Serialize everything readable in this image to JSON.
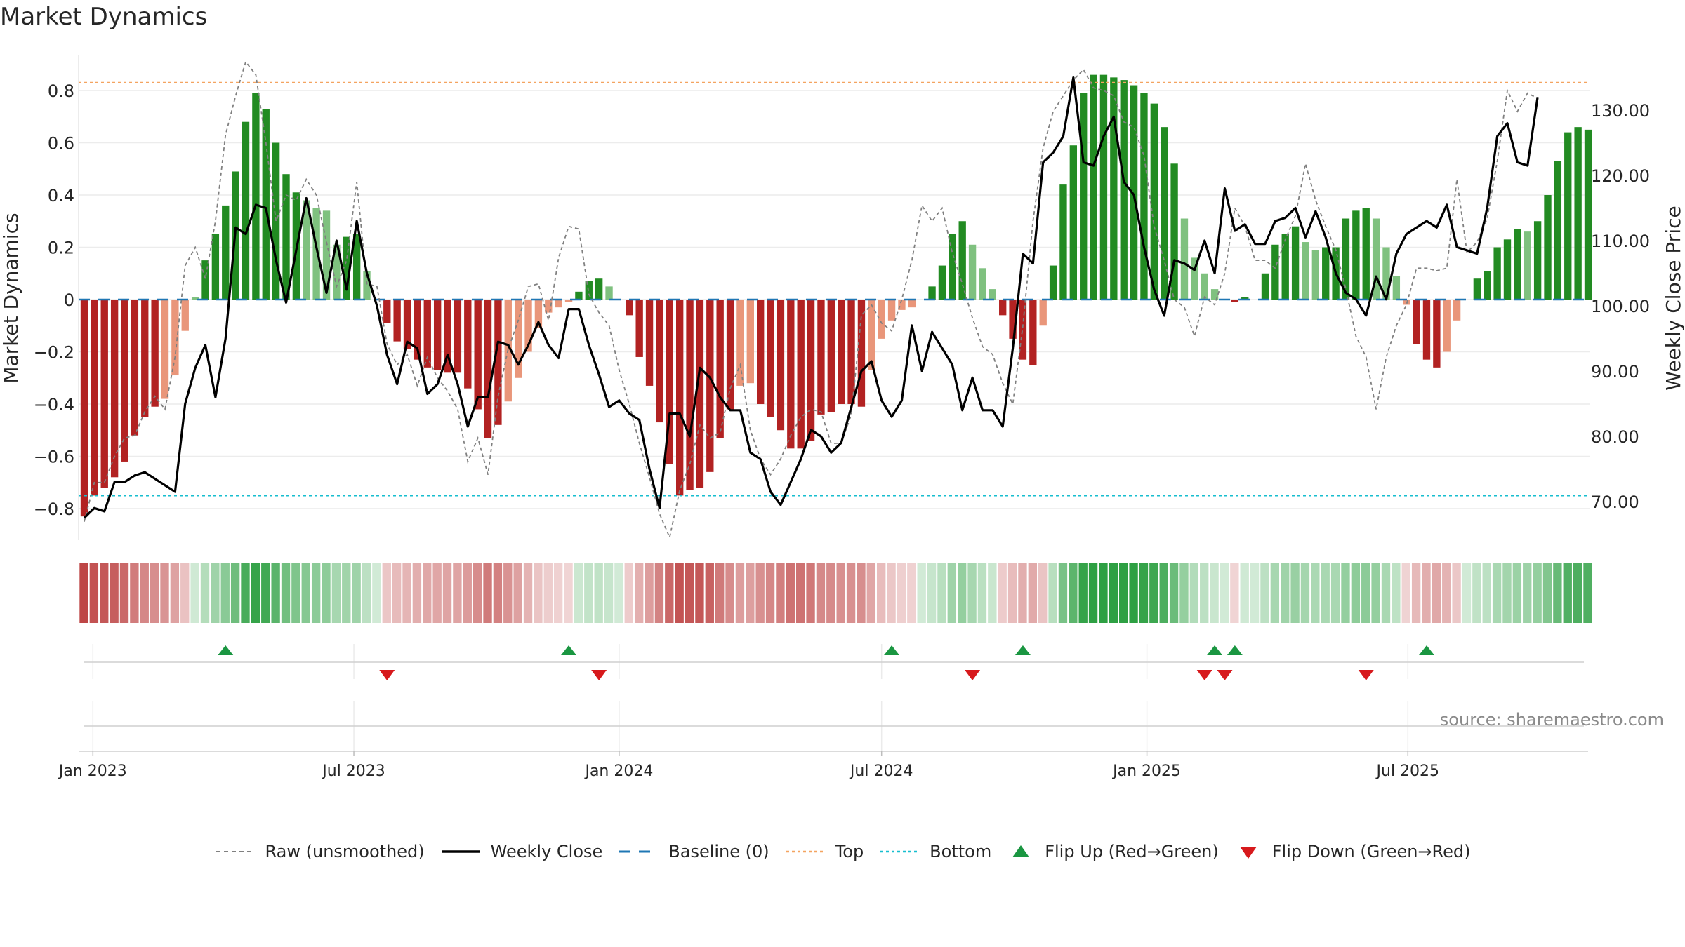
{
  "page": {
    "title": "Market Dynamics",
    "source": "source: sharemaestro.com"
  },
  "colors": {
    "strong_green": "#228b22",
    "light_green": "#7fc17f",
    "strong_red": "#b22222",
    "light_red": "#e9967a",
    "raw_line": "#808080",
    "close_line": "#000000",
    "baseline": "#1f77b4",
    "top": "#f4a460",
    "bottom": "#17becf",
    "flip_up": "#1a9641",
    "flip_down": "#d7191c"
  },
  "chart_data": {
    "type": "bar",
    "title": "Market Dynamics",
    "ylabel": "Market Dynamics",
    "y2label": "Weekly Close Price",
    "ylim": [
      -0.9,
      0.93
    ],
    "y2lim": [
      62,
      134
    ],
    "yticks": [
      "−0.8",
      "−0.6",
      "−0.4",
      "−0.2",
      "0",
      "0.2",
      "0.4",
      "0.6",
      "0.8"
    ],
    "yticks_values": [
      -0.8,
      -0.6,
      -0.4,
      -0.2,
      0,
      0.2,
      0.4,
      0.6,
      0.8
    ],
    "y2ticks": [
      "70.00",
      "80.00",
      "90.00",
      "100.00",
      "110.00",
      "120.00",
      "130.00"
    ],
    "y2ticks_values": [
      70,
      80,
      90,
      100,
      110,
      120,
      130
    ],
    "xticks": [
      "Jan 2023",
      "Jul 2023",
      "Jan 2024",
      "Jul 2024",
      "Jan 2025",
      "Jul 2025"
    ],
    "xticks_dates": [
      "2023-01-01",
      "2023-07-01",
      "2024-01-01",
      "2024-07-01",
      "2025-01-01",
      "2025-07-01"
    ],
    "start_date": "2022-12-26",
    "step_days": 7,
    "grid": true,
    "legend_position": "bottom-center",
    "top_level": 0.83,
    "bottom_level": -0.75,
    "baseline_level": 0,
    "series": [
      {
        "name": "Market Dynamics",
        "values": [
          -0.83,
          -0.75,
          -0.72,
          -0.68,
          -0.62,
          -0.52,
          -0.45,
          -0.41,
          -0.38,
          -0.29,
          -0.12,
          0.01,
          0.15,
          0.25,
          0.36,
          0.49,
          0.68,
          0.79,
          0.73,
          0.6,
          0.48,
          0.41,
          0.38,
          0.35,
          0.34,
          0.21,
          0.24,
          0.25,
          0.11,
          0.0,
          -0.09,
          -0.16,
          -0.19,
          -0.23,
          -0.26,
          -0.27,
          -0.28,
          -0.28,
          -0.34,
          -0.42,
          -0.53,
          -0.48,
          -0.39,
          -0.3,
          -0.2,
          -0.11,
          -0.05,
          -0.03,
          -0.01,
          0.03,
          0.07,
          0.08,
          0.05,
          0.0,
          -0.06,
          -0.22,
          -0.33,
          -0.47,
          -0.63,
          -0.75,
          -0.73,
          -0.72,
          -0.66,
          -0.53,
          -0.42,
          -0.33,
          -0.32,
          -0.4,
          -0.45,
          -0.5,
          -0.57,
          -0.57,
          -0.54,
          -0.44,
          -0.43,
          -0.4,
          -0.4,
          -0.41,
          -0.27,
          -0.15,
          -0.08,
          -0.04,
          -0.03,
          0.0,
          0.05,
          0.13,
          0.25,
          0.3,
          0.21,
          0.12,
          0.04,
          -0.06,
          -0.15,
          -0.23,
          -0.25,
          -0.1,
          0.13,
          0.44,
          0.59,
          0.79,
          0.86,
          0.86,
          0.85,
          0.84,
          0.82,
          0.79,
          0.75,
          0.66,
          0.52,
          0.31,
          0.16,
          0.1,
          0.04,
          0.0,
          -0.01,
          0.01,
          0.0,
          0.1,
          0.21,
          0.25,
          0.28,
          0.22,
          0.19,
          0.2,
          0.2,
          0.31,
          0.34,
          0.35,
          0.31,
          0.2,
          0.09,
          -0.02,
          -0.17,
          -0.23,
          -0.26,
          -0.2,
          -0.08,
          0.0,
          0.08,
          0.11,
          0.2,
          0.23,
          0.27,
          0.26,
          0.3,
          0.4,
          0.53,
          0.64,
          0.66,
          0.65
        ]
      },
      {
        "name": "Weekly Close",
        "values": [
          67.5,
          69.0,
          68.5,
          73.0,
          73.0,
          74.0,
          74.5,
          73.5,
          72.5,
          71.5,
          85.0,
          90.5,
          94.0,
          86.0,
          95.0,
          112.0,
          111.0,
          115.5,
          115.0,
          107.0,
          100.5,
          108.5,
          116.5,
          109.0,
          102.0,
          110.0,
          102.5,
          113.0,
          105.0,
          100.0,
          92.5,
          88.0,
          94.5,
          93.5,
          86.5,
          88.0,
          92.5,
          88.0,
          81.5,
          86.0,
          86.0,
          94.5,
          94.0,
          91.0,
          94.0,
          97.5,
          94.0,
          92.0,
          99.5,
          99.5,
          94.0,
          89.5,
          84.5,
          85.5,
          83.5,
          82.5,
          75.0,
          69.0,
          83.5,
          83.5,
          80.0,
          90.5,
          89.0,
          86.0,
          84.0,
          84.0,
          77.5,
          76.5,
          71.5,
          69.5,
          73.0,
          76.5,
          81.0,
          80.0,
          77.5,
          79.0,
          84.5,
          90.0,
          91.5,
          85.5,
          83.0,
          85.5,
          97.0,
          90.0,
          96.0,
          93.5,
          91.0,
          84.0,
          89.0,
          84.0,
          84.0,
          81.5,
          93.5,
          108.0,
          106.5,
          122.0,
          123.5,
          126.0,
          135.0,
          122.0,
          121.5,
          126.0,
          129.0,
          119.0,
          117.0,
          109.0,
          102.5,
          98.5,
          107.0,
          106.5,
          105.5,
          110.0,
          105.0,
          118.0,
          111.5,
          112.5,
          109.5,
          109.5,
          113.0,
          113.5,
          115.0,
          110.5,
          114.5,
          110.5,
          105.0,
          102.0,
          101.0,
          98.5,
          104.5,
          101.0,
          108.0,
          111.0,
          112.0,
          113.0,
          112.0,
          115.5,
          109.0,
          108.5,
          108.0,
          115.0,
          126.0,
          128.0,
          122.0,
          121.5,
          132.0
        ]
      },
      {
        "name": "Raw (unsmoothed)",
        "values": [
          -0.85,
          -0.7,
          -0.7,
          -0.6,
          -0.53,
          -0.52,
          -0.43,
          -0.37,
          -0.42,
          -0.22,
          0.13,
          0.2,
          0.08,
          0.3,
          0.63,
          0.78,
          0.91,
          0.86,
          0.6,
          0.3,
          0.4,
          0.38,
          0.46,
          0.4,
          0.22,
          0.05,
          0.15,
          0.45,
          0.06,
          0.05,
          -0.17,
          -0.25,
          -0.21,
          -0.33,
          -0.22,
          -0.3,
          -0.35,
          -0.42,
          -0.62,
          -0.53,
          -0.67,
          -0.37,
          -0.19,
          -0.08,
          0.05,
          0.06,
          -0.08,
          0.16,
          0.28,
          0.27,
          0.02,
          -0.05,
          -0.1,
          -0.27,
          -0.4,
          -0.55,
          -0.68,
          -0.82,
          -0.91,
          -0.73,
          -0.63,
          -0.48,
          -0.53,
          -0.51,
          -0.34,
          -0.25,
          -0.5,
          -0.61,
          -0.67,
          -0.61,
          -0.52,
          -0.45,
          -0.42,
          -0.43,
          -0.55,
          -0.55,
          -0.44,
          -0.06,
          -0.02,
          -0.09,
          -0.12,
          0.0,
          0.15,
          0.36,
          0.3,
          0.35,
          0.18,
          0.06,
          -0.07,
          -0.18,
          -0.21,
          -0.32,
          -0.4,
          -0.1,
          0.3,
          0.58,
          0.72,
          0.78,
          0.84,
          0.88,
          0.81,
          0.8,
          0.78,
          0.68,
          0.66,
          0.55,
          0.28,
          0.15,
          0.0,
          -0.03,
          -0.14,
          0.01,
          -0.02,
          0.1,
          0.35,
          0.28,
          0.15,
          0.15,
          0.12,
          0.23,
          0.32,
          0.52,
          0.38,
          0.28,
          0.19,
          0.04,
          -0.14,
          -0.22,
          -0.42,
          -0.22,
          -0.1,
          -0.02,
          0.12,
          0.12,
          0.11,
          0.12,
          0.46,
          0.18,
          0.22,
          0.31,
          0.53,
          0.8,
          0.72,
          0.79,
          0.77
        ]
      }
    ],
    "regime_band": {
      "name": "Regime",
      "values": [
        -0.83,
        -0.75,
        -0.72,
        -0.68,
        -0.62,
        -0.52,
        -0.45,
        -0.41,
        -0.38,
        -0.29,
        -0.12,
        0.01,
        0.15,
        0.25,
        0.36,
        0.49,
        0.68,
        0.79,
        0.73,
        0.6,
        0.48,
        0.41,
        0.38,
        0.35,
        0.34,
        0.21,
        0.24,
        0.25,
        0.11,
        0.0,
        -0.09,
        -0.16,
        -0.19,
        -0.23,
        -0.26,
        -0.27,
        -0.28,
        -0.28,
        -0.34,
        -0.42,
        -0.53,
        -0.48,
        -0.39,
        -0.3,
        -0.2,
        -0.11,
        -0.05,
        -0.03,
        -0.01,
        0.03,
        0.07,
        0.08,
        0.05,
        0.0,
        -0.06,
        -0.22,
        -0.33,
        -0.47,
        -0.63,
        -0.75,
        -0.73,
        -0.72,
        -0.66,
        -0.53,
        -0.42,
        -0.33,
        -0.32,
        -0.4,
        -0.45,
        -0.5,
        -0.57,
        -0.57,
        -0.54,
        -0.44,
        -0.43,
        -0.4,
        -0.4,
        -0.41,
        -0.27,
        -0.15,
        -0.08,
        -0.04,
        -0.03,
        0.0,
        0.05,
        0.13,
        0.25,
        0.3,
        0.21,
        0.12,
        0.04,
        -0.06,
        -0.15,
        -0.23,
        -0.25,
        -0.1,
        0.13,
        0.44,
        0.59,
        0.79,
        0.86,
        0.86,
        0.85,
        0.84,
        0.82,
        0.79,
        0.75,
        0.66,
        0.52,
        0.31,
        0.16,
        0.1,
        0.04,
        0.0,
        -0.01,
        0.01,
        0.0,
        0.1,
        0.21,
        0.25,
        0.28,
        0.22,
        0.19,
        0.2,
        0.2,
        0.31,
        0.34,
        0.35,
        0.31,
        0.2,
        0.09,
        -0.02,
        -0.17,
        -0.23,
        -0.26,
        -0.2,
        -0.08,
        0.0,
        0.08,
        0.11,
        0.2,
        0.23,
        0.27,
        0.26,
        0.3,
        0.4,
        0.53,
        0.64,
        0.66,
        0.65
      ]
    },
    "flips_up": [
      "2023-04-03",
      "2023-11-27",
      "2024-07-08",
      "2024-10-07",
      "2025-02-17",
      "2025-03-03",
      "2025-07-14"
    ],
    "flips_down": [
      "2023-07-24",
      "2023-12-18",
      "2024-09-02",
      "2025-02-10",
      "2025-02-24",
      "2025-06-02"
    ]
  },
  "legend": {
    "raw": "Raw (unsmoothed)",
    "close": "Weekly Close",
    "baseline": "Baseline (0)",
    "top": "Top",
    "bottom": "Bottom",
    "flip_up": "Flip Up (Red→Green)",
    "flip_down": "Flip Down (Green→Red)"
  }
}
